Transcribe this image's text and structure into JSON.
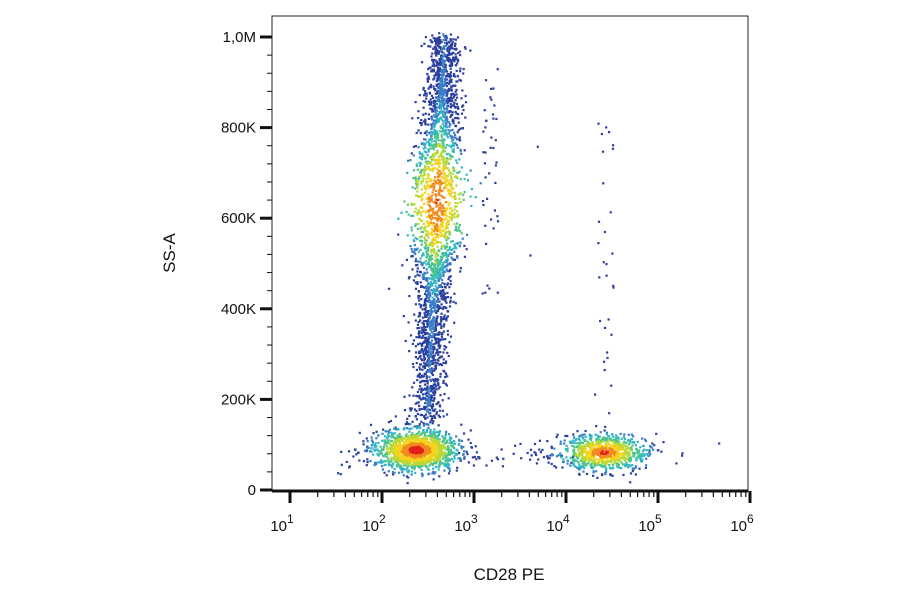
{
  "chart_data": {
    "type": "scatter",
    "subtype": "flow-cytometry-density",
    "title": "",
    "xlabel": "CD28 PE",
    "ylabel": "SS-A",
    "xscale": "log",
    "xlim": [
      10,
      1000000
    ],
    "yscale": "linear",
    "ylim": [
      0,
      1000000
    ],
    "x_ticks": [
      {
        "base": "10",
        "exp": "1",
        "value": 10
      },
      {
        "base": "10",
        "exp": "2",
        "value": 100
      },
      {
        "base": "10",
        "exp": "3",
        "value": 1000
      },
      {
        "base": "10",
        "exp": "4",
        "value": 10000
      },
      {
        "base": "10",
        "exp": "5",
        "value": 100000
      },
      {
        "base": "10",
        "exp": "6",
        "value": 1000000
      }
    ],
    "y_ticks": [
      {
        "label": "0",
        "value": 0
      },
      {
        "label": "200K",
        "value": 200000
      },
      {
        "label": "400K",
        "value": 400000
      },
      {
        "label": "600K",
        "value": 600000
      },
      {
        "label": "800K",
        "value": 800000
      },
      {
        "label": "1,0M",
        "value": 1000000
      }
    ],
    "grid": false,
    "legend": "none",
    "density_colors": [
      "#2b3f9e",
      "#3a7fc6",
      "#2fb6c4",
      "#4cc48a",
      "#b8d834",
      "#f5d31c",
      "#f08a1e",
      "#e0201b"
    ],
    "populations": [
      {
        "id": "lymphocytes-cd28-neg",
        "x_center": 230,
        "y_center": 90000,
        "count": 1400
      },
      {
        "id": "granulocytes-band",
        "x_center": 380,
        "y_range": [
          150000,
          1000000
        ],
        "count": 2600
      },
      {
        "id": "lymphocytes-cd28-pos",
        "x_center": 25000,
        "y_center": 85000,
        "count": 850
      }
    ]
  }
}
